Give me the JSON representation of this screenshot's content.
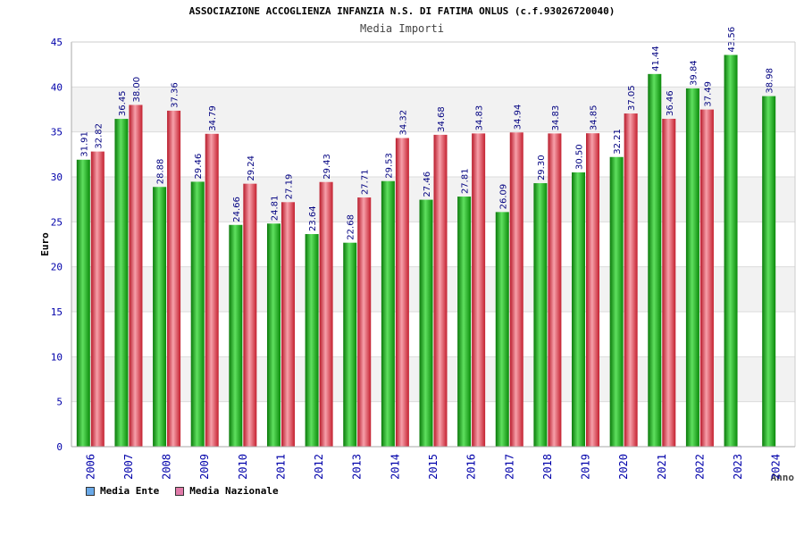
{
  "chart_data": {
    "type": "bar",
    "title": "ASSOCIAZIONE ACCOGLIENZA INFANZIA N.S. DI FATIMA ONLUS (c.f.93026720040)",
    "subtitle": "Media Importi",
    "ylabel": "Euro",
    "xlabel": "Anno",
    "ylim": [
      0,
      45
    ],
    "yticks": [
      0,
      5,
      10,
      15,
      20,
      25,
      30,
      35,
      40,
      45
    ],
    "grid": true,
    "legend_position": "bottom-left",
    "categories": [
      "2006",
      "2007",
      "2008",
      "2009",
      "2010",
      "2011",
      "2012",
      "2013",
      "2014",
      "2015",
      "2016",
      "2017",
      "2018",
      "2019",
      "2020",
      "2021",
      "2022",
      "2023",
      "2024"
    ],
    "series": [
      {
        "name": "Media Ente",
        "legend_color": "#6aa9e8",
        "bar_color": "#1fb81f",
        "values": [
          31.91,
          36.45,
          28.88,
          29.46,
          24.66,
          24.81,
          23.64,
          22.68,
          29.53,
          27.46,
          27.81,
          26.09,
          29.3,
          30.5,
          32.21,
          41.44,
          39.84,
          43.56,
          38.98
        ],
        "labels": [
          "31.91",
          "36.45",
          "28.88",
          "29.46",
          "24.66",
          "24.81",
          "23.64",
          "22.68",
          "29.53",
          "27.46",
          "27.81",
          "26.09",
          "29.30",
          "30.50",
          "32.21",
          "41.44",
          "39.84",
          "43.56",
          "38.98"
        ]
      },
      {
        "name": "Media Nazionale",
        "legend_color": "#e07aa8",
        "bar_color": "#e8364a",
        "values": [
          32.82,
          38.0,
          37.36,
          34.79,
          29.24,
          27.19,
          29.43,
          27.71,
          34.32,
          34.68,
          34.83,
          34.94,
          34.83,
          34.85,
          37.05,
          36.46,
          37.49,
          null,
          null
        ],
        "labels": [
          "32.82",
          "38.00",
          "37.36",
          "34.79",
          "29.24",
          "27.19",
          "29.43",
          "27.71",
          "34.32",
          "34.68",
          "34.83",
          "34.94",
          "34.83",
          "34.85",
          "37.05",
          "36.46",
          "37.49",
          null,
          null
        ]
      }
    ],
    "colors": {
      "axis_tick_labels": "#0000aa",
      "value_labels": "#000080",
      "band_fill": "#f2f2f2",
      "grid_line": "#dcdcdc"
    }
  }
}
